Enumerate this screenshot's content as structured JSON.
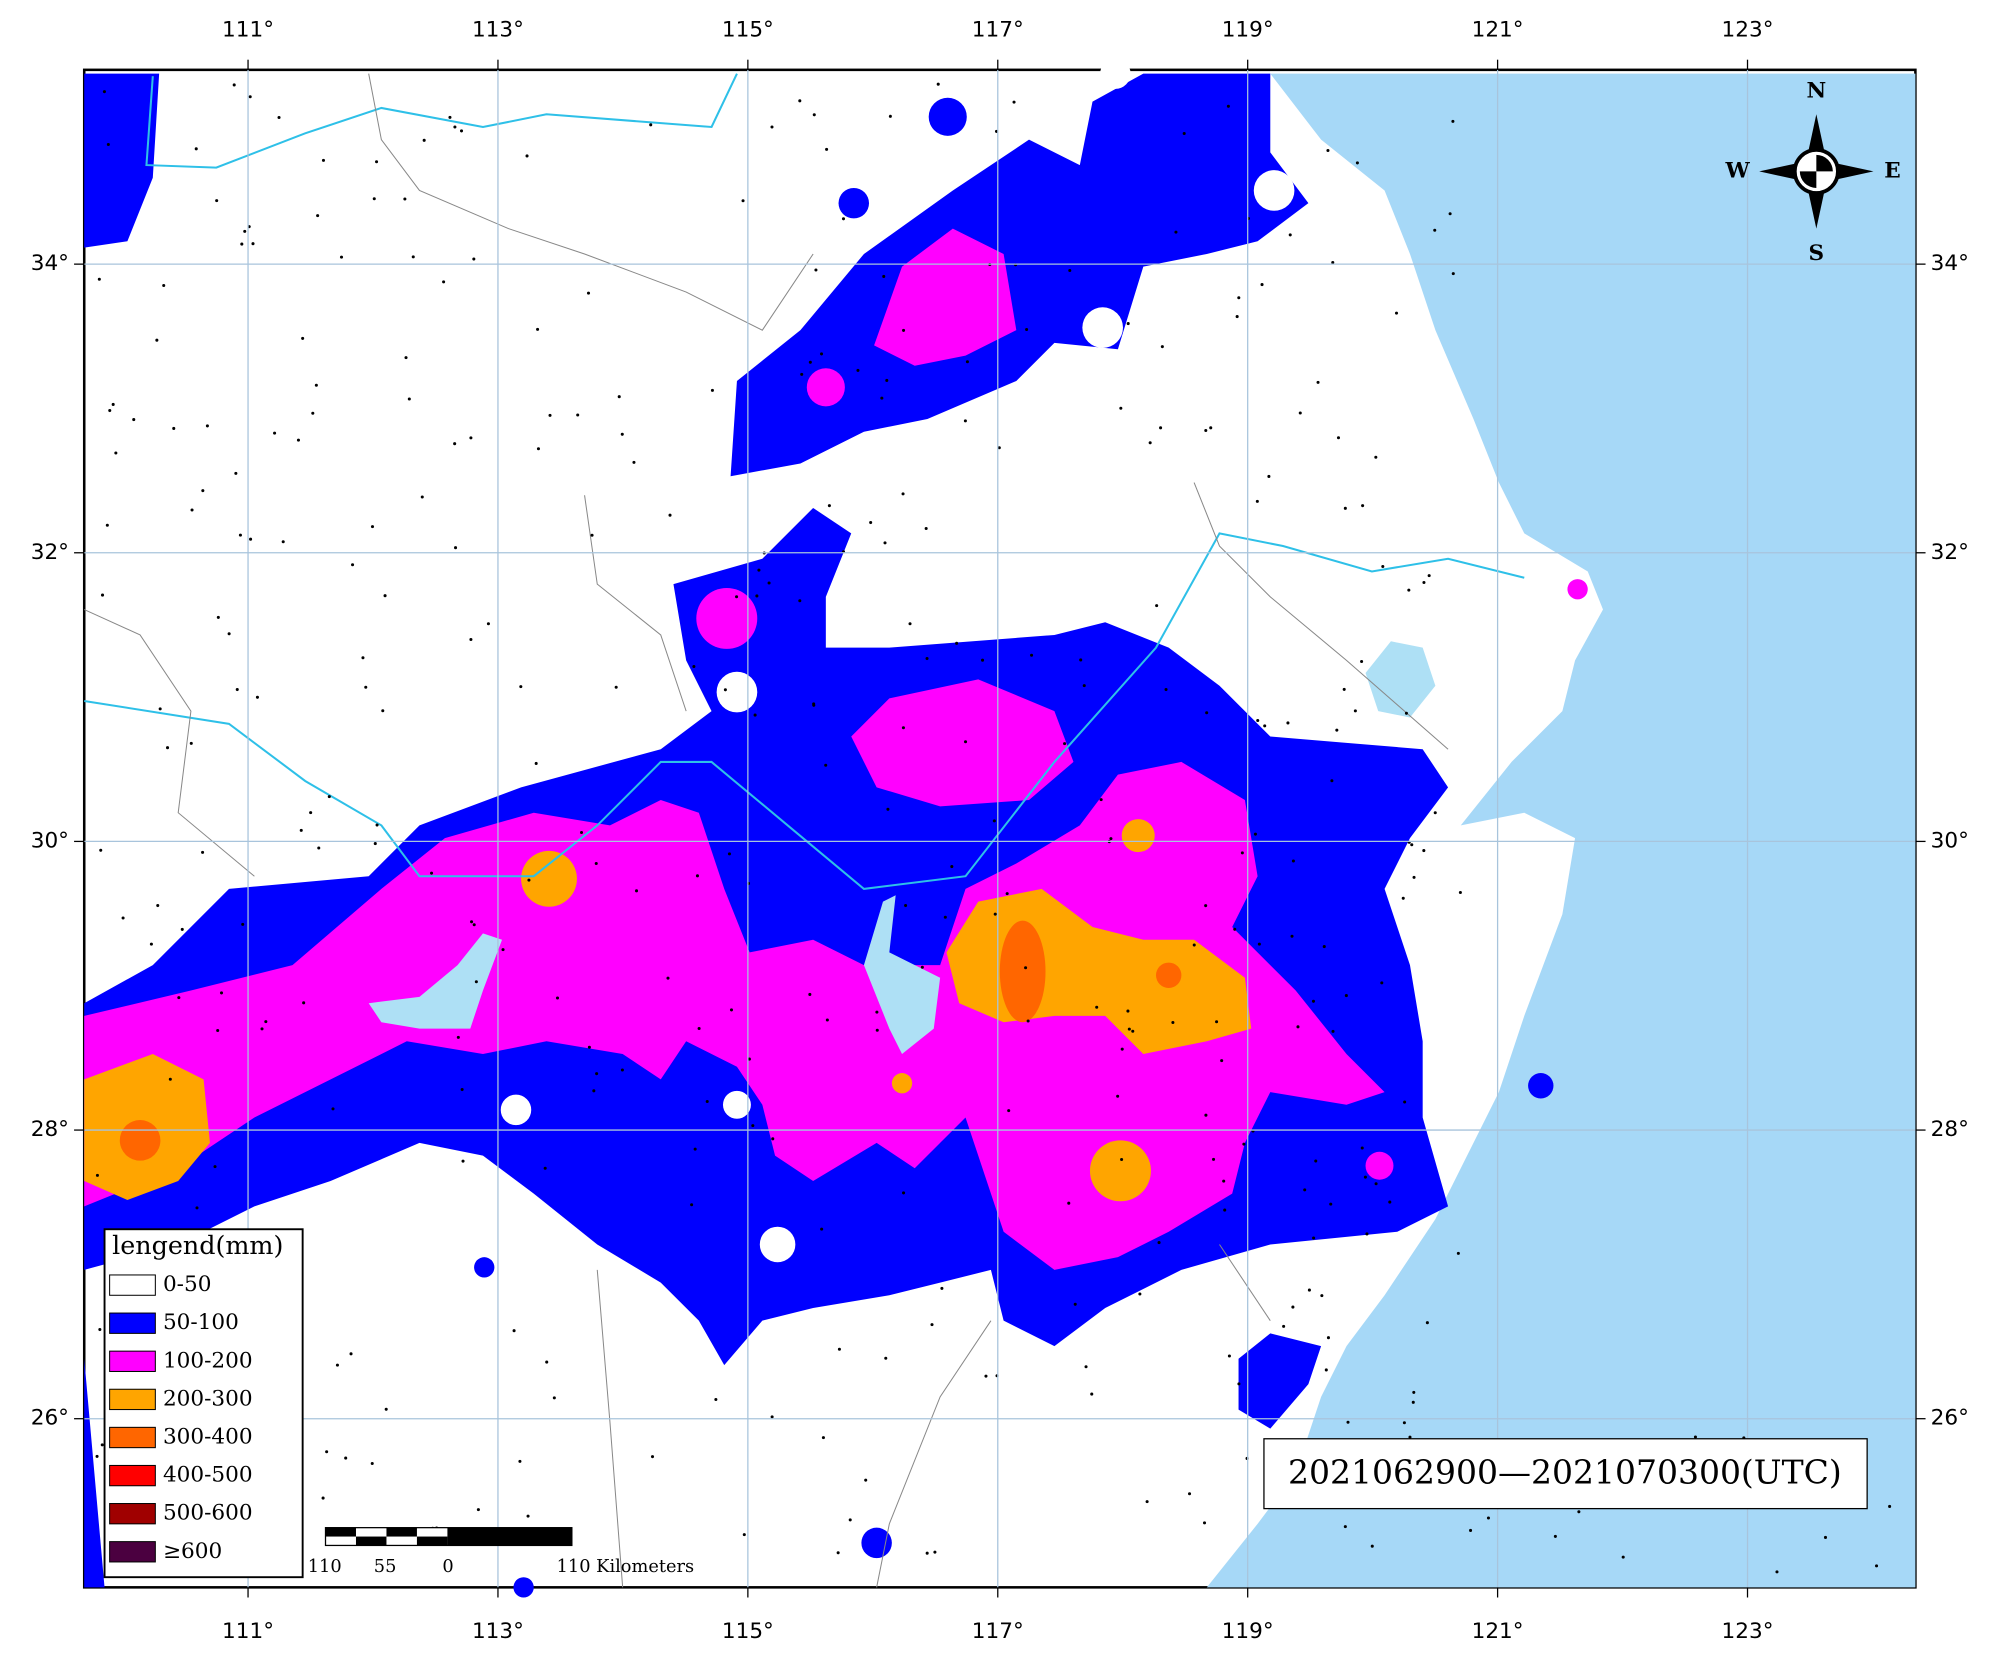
{
  "map": {
    "lon_ticks": [
      "111°",
      "113°",
      "115°",
      "117°",
      "119°",
      "121°",
      "123°"
    ],
    "lat_ticks": [
      "34°",
      "32°",
      "30°",
      "28°",
      "26°"
    ],
    "legend": {
      "title": "lengend(mm)",
      "items": [
        {
          "label": "0-50",
          "color": "#ffffff"
        },
        {
          "label": "50-100",
          "color": "#0000ff"
        },
        {
          "label": "100-200",
          "color": "#ff00ff"
        },
        {
          "label": "200-300",
          "color": "#ffa500"
        },
        {
          "label": "300-400",
          "color": "#ff6600"
        },
        {
          "label": "400-500",
          "color": "#ff0000"
        },
        {
          "label": "500-600",
          "color": "#a00000"
        },
        {
          "label": "≥600",
          "color": "#4b0040"
        }
      ]
    },
    "scale_bar": {
      "labels": [
        "110",
        "55",
        "0",
        "110 Kilometers"
      ]
    },
    "compass": {
      "n": "N",
      "s": "S",
      "w": "W",
      "e": "E"
    },
    "period": "2021062900—2021070300(UTC)"
  }
}
